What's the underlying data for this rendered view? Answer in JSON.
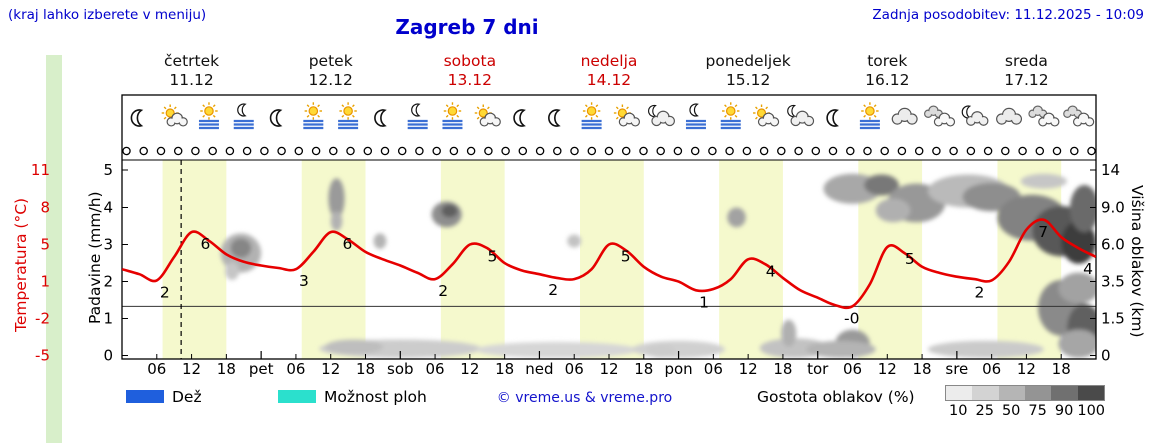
{
  "header": {
    "hint": "(kraj lahko izberete v meniju)",
    "title": "Zagreb 7 dni",
    "updated": "Zadnja posodobitev: 11.12.2025 - 10:09"
  },
  "days": [
    {
      "name": "četrtek",
      "date": "11.12",
      "highlight": false
    },
    {
      "name": "petek",
      "date": "12.12",
      "highlight": false
    },
    {
      "name": "sobota",
      "date": "13.12",
      "highlight": true
    },
    {
      "name": "nedelja",
      "date": "14.12",
      "highlight": true
    },
    {
      "name": "ponedeljek",
      "date": "15.12",
      "highlight": false
    },
    {
      "name": "torek",
      "date": "16.12",
      "highlight": false
    },
    {
      "name": "sreda",
      "date": "17.12",
      "highlight": false
    }
  ],
  "axes": {
    "temperature": {
      "label": "Temperatura (°C)",
      "ticks": [
        "11",
        "8",
        "5",
        "1",
        "-2",
        "-5"
      ],
      "color": "#dd0000"
    },
    "precip": {
      "label": "Padavine (mm/h)",
      "ticks": [
        "5",
        "4",
        "3",
        "2",
        "1",
        "0"
      ]
    },
    "cloud_height": {
      "label": "Višina oblakov (km)",
      "ticks": [
        "14",
        "9.0",
        "6.0",
        "3.5",
        "1.5",
        "0"
      ]
    },
    "time": {
      "hour_labels": [
        "06",
        "12",
        "18"
      ],
      "day_abbrs": [
        "pet",
        "sob",
        "ned",
        "pon",
        "tor",
        "sre"
      ]
    }
  },
  "legend": {
    "rain_label": "Dež",
    "rain_color": "#1f5fdd",
    "showers_label": "Možnost ploh",
    "showers_color": "#2be0cd",
    "copyright": "© vreme.us & vreme.pro",
    "density_label": "Gostota oblakov (%)",
    "density_ticks": [
      "10",
      "25",
      "50",
      "75",
      "90",
      "100"
    ],
    "density_colors": [
      "#ececec",
      "#d3d3d3",
      "#b5b5b5",
      "#949494",
      "#707070",
      "#4a4a4a"
    ]
  },
  "chart_data": {
    "type": "line",
    "title": "Zagreb 7 dni",
    "x_unit": "hour",
    "x_range": [
      0,
      168
    ],
    "day_band": {
      "start_hour": 7,
      "end_hour": 18,
      "color": "#f5f9cd"
    },
    "now_marker_hour": 10.2,
    "freezing_line_temp": 0,
    "time_dots": 57,
    "temperature_series": {
      "name": "Temperatura (°C)",
      "color": "#e60000",
      "x": [
        0,
        3,
        6,
        9,
        12,
        15,
        18,
        21,
        24,
        27,
        30,
        33,
        36,
        39,
        42,
        45,
        48,
        51,
        54,
        57,
        60,
        63,
        66,
        69,
        72,
        75,
        78,
        81,
        84,
        87,
        90,
        93,
        96,
        99,
        102,
        105,
        108,
        111,
        114,
        117,
        120,
        123,
        126,
        129,
        132,
        135,
        138,
        141,
        144,
        147,
        150,
        153,
        156,
        159,
        162,
        165,
        168
      ],
      "values": [
        3.0,
        2.6,
        2.1,
        4.0,
        6.0,
        5.3,
        4.2,
        3.6,
        3.3,
        3.1,
        3.0,
        4.4,
        6.0,
        5.4,
        4.4,
        3.8,
        3.3,
        2.7,
        2.2,
        3.4,
        5.0,
        4.7,
        3.5,
        2.9,
        2.6,
        2.3,
        2.2,
        3.0,
        5.0,
        4.5,
        3.2,
        2.4,
        2.0,
        1.3,
        1.4,
        2.2,
        3.8,
        3.4,
        2.3,
        1.3,
        0.7,
        0.1,
        0.0,
        1.8,
        4.8,
        4.3,
        3.2,
        2.7,
        2.4,
        2.2,
        2.1,
        3.6,
        6.2,
        7.0,
        5.6,
        4.7,
        4.0
      ]
    },
    "temperature_point_labels": [
      {
        "hour": 5.5,
        "value": 2.1,
        "label": "2"
      },
      {
        "hour": 12.5,
        "value": 6,
        "label": "6"
      },
      {
        "hour": 29.5,
        "value": 3,
        "label": "3"
      },
      {
        "hour": 37,
        "value": 6,
        "label": "6"
      },
      {
        "hour": 53.5,
        "value": 2.2,
        "label": "2"
      },
      {
        "hour": 62,
        "value": 5,
        "label": "5"
      },
      {
        "hour": 72.5,
        "value": 2.3,
        "label": "2"
      },
      {
        "hour": 85,
        "value": 5,
        "label": "5"
      },
      {
        "hour": 98.5,
        "value": 1.3,
        "label": "1"
      },
      {
        "hour": 110,
        "value": 3.8,
        "label": "4"
      },
      {
        "hour": 123.5,
        "value": 0,
        "label": "-0"
      },
      {
        "hour": 134,
        "value": 4.8,
        "label": "5"
      },
      {
        "hour": 146,
        "value": 2.1,
        "label": "2"
      },
      {
        "hour": 157,
        "value": 7,
        "label": "7"
      },
      {
        "hour": 167,
        "value": 4,
        "label": "4"
      }
    ],
    "weather_icons": [
      "moon",
      "sun-cloud",
      "sun-fog",
      "moon-fog",
      "moon",
      "sun-fog",
      "sun-fog",
      "moon",
      "moon-fog",
      "sun-fog",
      "sun-cloud",
      "moon",
      "moon",
      "sun-fog",
      "sun-cloud",
      "cloud-moon",
      "moon-fog",
      "sun-fog",
      "sun-cloud",
      "cloud-moon",
      "moon",
      "sun-fog",
      "cloud",
      "clouds",
      "moon-cloud",
      "cloud",
      "clouds",
      "clouds"
    ],
    "cloud_regions": [
      {
        "hour": 20.5,
        "km": 5.5,
        "h_radius": 3.5,
        "km_radius": 1.4,
        "gray": "#b2b2b2"
      },
      {
        "hour": 20.5,
        "km": 5.8,
        "h_radius": 1.8,
        "km_radius": 0.7,
        "gray": "#868686"
      },
      {
        "hour": 19,
        "km": 4.2,
        "h_radius": 1.2,
        "km_radius": 0.6,
        "gray": "#c6c6c6"
      },
      {
        "hour": 37,
        "km": 10.5,
        "h_radius": 1.4,
        "km_radius": 2.4,
        "gray": "#9a9a9a"
      },
      {
        "hour": 37,
        "km": 7.9,
        "h_radius": 1.0,
        "km_radius": 0.8,
        "gray": "#b2b2b2"
      },
      {
        "hour": 44.5,
        "km": 6.3,
        "h_radius": 1.1,
        "km_radius": 0.6,
        "gray": "#b4b4b4"
      },
      {
        "hour": 56,
        "km": 8.6,
        "h_radius": 2.6,
        "km_radius": 1.2,
        "gray": "#8e8e8e"
      },
      {
        "hour": 56.5,
        "km": 8.8,
        "h_radius": 1.4,
        "km_radius": 0.6,
        "gray": "#5e5e5e"
      },
      {
        "hour": 78,
        "km": 6.3,
        "h_radius": 1.2,
        "km_radius": 0.5,
        "gray": "#c2c2c2"
      },
      {
        "hour": 106,
        "km": 8.2,
        "h_radius": 1.6,
        "km_radius": 0.8,
        "gray": "#a2a2a2"
      },
      {
        "hour": 126,
        "km": 11.5,
        "h_radius": 5,
        "km_radius": 2.0,
        "gray": "#a8a8a8"
      },
      {
        "hour": 131,
        "km": 12,
        "h_radius": 3,
        "km_radius": 1.4,
        "gray": "#787878"
      },
      {
        "hour": 137,
        "km": 10,
        "h_radius": 5,
        "km_radius": 2.2,
        "gray": "#989898"
      },
      {
        "hour": 133,
        "km": 9,
        "h_radius": 3,
        "km_radius": 1.2,
        "gray": "#b0b0b0"
      },
      {
        "hour": 146,
        "km": 11.2,
        "h_radius": 7,
        "km_radius": 2.2,
        "gray": "#bababa"
      },
      {
        "hour": 150,
        "km": 10.5,
        "h_radius": 5,
        "km_radius": 1.8,
        "gray": "#8e8e8e"
      },
      {
        "hour": 157,
        "km": 8.5,
        "h_radius": 6,
        "km_radius": 2.2,
        "gray": "#828282"
      },
      {
        "hour": 162,
        "km": 7.2,
        "h_radius": 5,
        "km_radius": 2.0,
        "gray": "#585858"
      },
      {
        "hour": 165,
        "km": 6.3,
        "h_radius": 3,
        "km_radius": 1.6,
        "gray": "#3c3c3c"
      },
      {
        "hour": 166,
        "km": 9.5,
        "h_radius": 2.5,
        "km_radius": 2.5,
        "gray": "#6a6a6a"
      },
      {
        "hour": 159,
        "km": 12.5,
        "h_radius": 4,
        "km_radius": 1.0,
        "gray": "#c6c6c6"
      },
      {
        "hour": 162,
        "km": 2.2,
        "h_radius": 4,
        "km_radius": 1.4,
        "gray": "#8a8a8a"
      },
      {
        "hour": 166,
        "km": 1.2,
        "h_radius": 3,
        "km_radius": 1.1,
        "gray": "#606060"
      },
      {
        "hour": 165,
        "km": 3.2,
        "h_radius": 3.5,
        "km_radius": 0.9,
        "gray": "#a2a2a2"
      },
      {
        "hour": 48,
        "km": 0.3,
        "h_radius": 14,
        "km_radius": 0.35,
        "gray": "#cccccc"
      },
      {
        "hour": 40,
        "km": 0.35,
        "h_radius": 5,
        "km_radius": 0.3,
        "gray": "#bebebe"
      },
      {
        "hour": 75,
        "km": 0.25,
        "h_radius": 14,
        "km_radius": 0.3,
        "gray": "#d6d6d6"
      },
      {
        "hour": 96,
        "km": 0.3,
        "h_radius": 8,
        "km_radius": 0.3,
        "gray": "#d0d0d0"
      },
      {
        "hour": 116,
        "km": 0.35,
        "h_radius": 6,
        "km_radius": 0.35,
        "gray": "#c2c2c2"
      },
      {
        "hour": 126,
        "km": 0.5,
        "h_radius": 3,
        "km_radius": 0.55,
        "gray": "#9a9a9a"
      },
      {
        "hour": 124,
        "km": 0.3,
        "h_radius": 6,
        "km_radius": 0.3,
        "gray": "#b4b4b4"
      },
      {
        "hour": 149,
        "km": 0.3,
        "h_radius": 10,
        "km_radius": 0.3,
        "gray": "#cacaca"
      },
      {
        "hour": 165,
        "km": 0.5,
        "h_radius": 3.5,
        "km_radius": 0.55,
        "gray": "#a6a6a6"
      },
      {
        "hour": 93,
        "km": 0.2,
        "h_radius": 2.5,
        "km_radius": 0.25,
        "gray": "#cccccc"
      },
      {
        "hour": 115,
        "km": 0.9,
        "h_radius": 1.3,
        "km_radius": 0.55,
        "gray": "#b0b0b0"
      }
    ]
  }
}
